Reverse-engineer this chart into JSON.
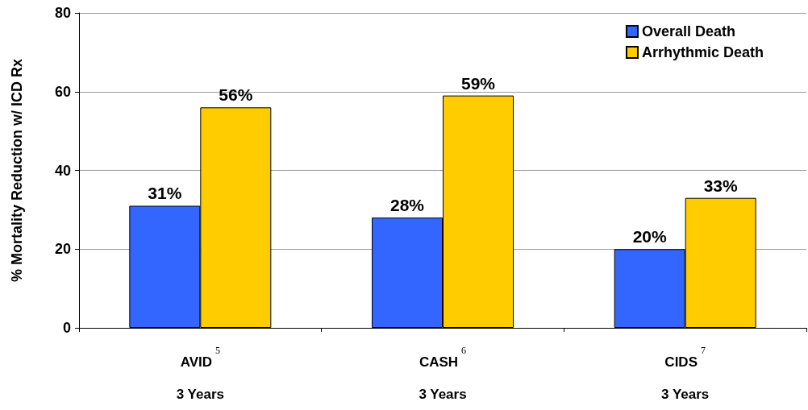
{
  "chart_data": {
    "type": "bar",
    "ylabel": "% Mortality Reduction w/ ICD Rx",
    "categories": [
      "AVID$^{5}$\n3 Years",
      "CASH$^{6}$\n3 Years",
      "CIDS$^{7}$\n3 Years"
    ],
    "series": [
      {
        "name": "Overall Death",
        "color": "#3366ff",
        "values": [
          31,
          28,
          20
        ],
        "value_labels": [
          "31%",
          "28%",
          "20%"
        ]
      },
      {
        "name": "Arrhythmic Death",
        "color": "#ffcc00",
        "values": [
          56,
          59,
          33
        ],
        "value_labels": [
          "56%",
          "59%",
          "33%"
        ]
      }
    ],
    "ylim": [
      0,
      80
    ],
    "yticks": [
      0,
      20,
      40,
      60,
      80
    ],
    "grid": "y",
    "legend": "top right"
  }
}
